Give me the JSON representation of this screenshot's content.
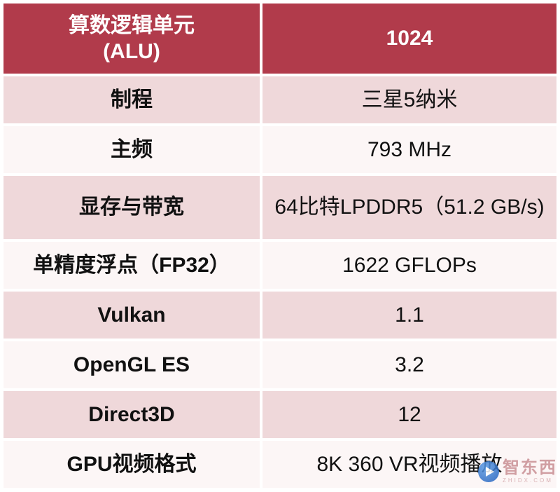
{
  "table": {
    "rows": [
      {
        "label": "算数逻辑单元\n(ALU)",
        "value": "1024"
      },
      {
        "label": "制程",
        "value": "三星5纳米"
      },
      {
        "label": "主频",
        "value": "793 MHz"
      },
      {
        "label": "显存与带宽",
        "value": "64比特LPDDR5（51.2 GB/s)"
      },
      {
        "label": "单精度浮点（FP32）",
        "value": "1622 GFLOPs"
      },
      {
        "label": "Vulkan",
        "value": "1.1"
      },
      {
        "label": "OpenGL ES",
        "value": "3.2"
      },
      {
        "label": "Direct3D",
        "value": "12"
      },
      {
        "label": "GPU视频格式",
        "value": "8K 360 VR视频播放"
      }
    ],
    "colors": {
      "header_bg": "#b13b4b",
      "header_text": "#ffffff",
      "row_pink_bg": "#efd8da",
      "row_light_bg": "#fcf6f6",
      "text": "#111111"
    }
  },
  "chart_data": {
    "type": "table",
    "first_row_is_header": true,
    "rows": [
      [
        "算数逻辑单元 (ALU)",
        "1024"
      ],
      [
        "制程",
        "三星5纳米"
      ],
      [
        "主频",
        "793 MHz"
      ],
      [
        "显存与带宽",
        "64比特LPDDR5（51.2 GB/s)"
      ],
      [
        "单精度浮点（FP32）",
        "1622 GFLOPs"
      ],
      [
        "Vulkan",
        "1.1"
      ],
      [
        "OpenGL ES",
        "3.2"
      ],
      [
        "Direct3D",
        "12"
      ],
      [
        "GPU视频格式",
        "8K 360 VR视频播放"
      ]
    ]
  },
  "watermark": {
    "text": "智东西",
    "sub": "ZHIDX.COM"
  }
}
